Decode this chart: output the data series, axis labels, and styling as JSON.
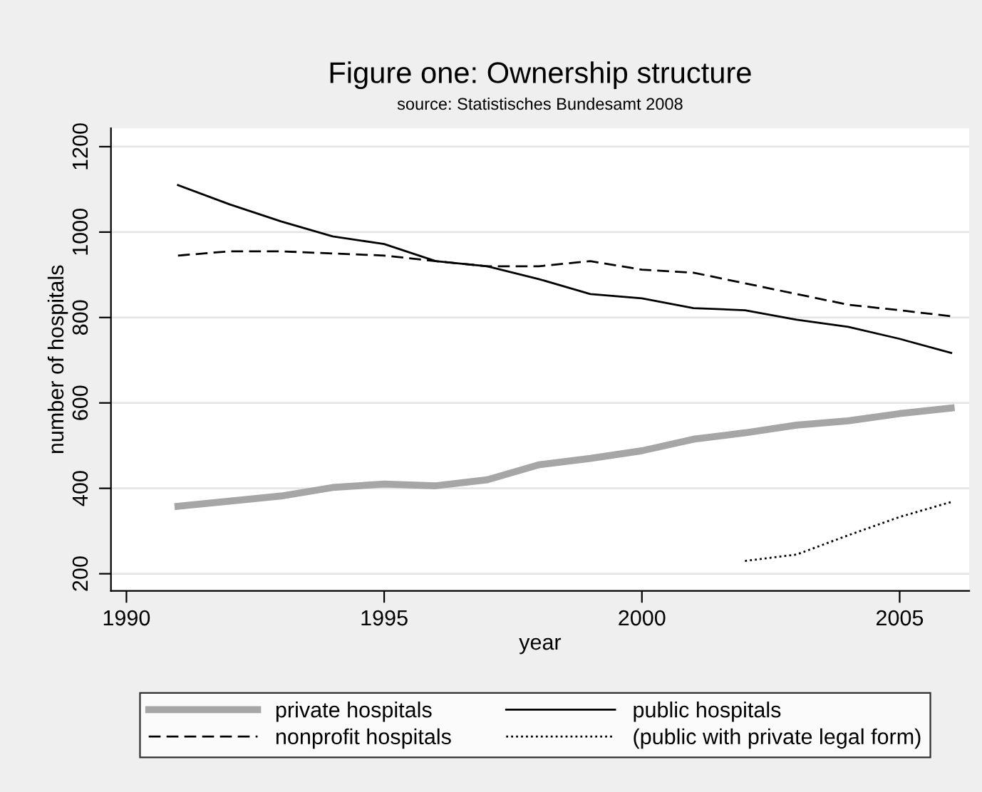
{
  "chart_data": {
    "type": "line",
    "title": "Figure one: Ownership structure",
    "subtitle": "source: Statistisches Bundesamt 2008",
    "xlabel": "year",
    "ylabel": "number of hospitals",
    "xlim": [
      1989.7,
      2006.35
    ],
    "xticks": [
      1990,
      1995,
      2000,
      2005
    ],
    "ylim": [
      160,
      1243
    ],
    "yticks": [
      200,
      400,
      600,
      800,
      1000,
      1200
    ],
    "grid": "y",
    "legend": "bottom",
    "marker": "none",
    "series": [
      {
        "name": "private hospitals",
        "color": "#a6a6a6",
        "line_style": "solid",
        "x": [
          1991,
          1992,
          1993,
          1994,
          1995,
          1996,
          1997,
          1998,
          1999,
          2000,
          2001,
          2002,
          2003,
          2004,
          2005,
          2006
        ],
        "values": [
          358,
          370,
          382,
          402,
          410,
          406,
          420,
          455,
          470,
          488,
          515,
          530,
          548,
          558,
          575,
          588
        ]
      },
      {
        "name": "public hospitals",
        "color": "#000000",
        "line_style": "solid",
        "x": [
          1991,
          1992,
          1993,
          1994,
          1995,
          1996,
          1997,
          1998,
          1999,
          2000,
          2001,
          2002,
          2003,
          2004,
          2005,
          2006
        ],
        "values": [
          1110,
          1065,
          1025,
          990,
          972,
          932,
          920,
          890,
          855,
          845,
          822,
          817,
          795,
          778,
          750,
          717
        ]
      },
      {
        "name": "nonprofit hospitals",
        "color": "#000000",
        "line_style": "dashed",
        "x": [
          1991,
          1992,
          1993,
          1994,
          1995,
          1996,
          1997,
          1998,
          1999,
          2000,
          2001,
          2002,
          2003,
          2004,
          2005,
          2006
        ],
        "values": [
          945,
          955,
          955,
          950,
          945,
          932,
          920,
          920,
          932,
          912,
          905,
          880,
          855,
          830,
          817,
          803
        ]
      },
      {
        "name": "(public with private legal form)",
        "color": "#000000",
        "line_style": "dotted",
        "x": [
          2002,
          2003,
          2004,
          2005,
          2006
        ],
        "values": [
          230,
          245,
          290,
          333,
          368
        ]
      }
    ]
  }
}
